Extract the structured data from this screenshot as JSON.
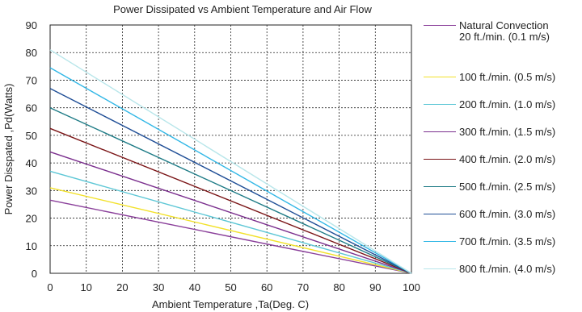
{
  "chart_data": {
    "type": "line",
    "title": "Power Dissipated vs Ambient Temperature and Air Flow",
    "xlabel": "Ambient Temperature ,Ta(Deg. C)",
    "ylabel": "Power Disspated ,Pd(Watts)",
    "xlim": [
      0,
      100
    ],
    "ylim": [
      0,
      90
    ],
    "xticks": [
      "0",
      "10",
      "20",
      "30",
      "40",
      "50",
      "60",
      "70",
      "80",
      "90",
      "100"
    ],
    "yticks": [
      "0",
      "10",
      "20",
      "30",
      "40",
      "50",
      "60",
      "70",
      "80",
      "90"
    ],
    "grid": true,
    "legend_position": "right",
    "series": [
      {
        "name": "Natural Convection",
        "subname": "20 ft./min. (0.1 m/s)",
        "color": "#8a3f9a",
        "x": [
          0,
          100
        ],
        "y": [
          26.5,
          0
        ]
      },
      {
        "name": "100 ft./min. (0.5 m/s)",
        "color": "#f2e12a",
        "x": [
          0,
          100
        ],
        "y": [
          31,
          0
        ]
      },
      {
        "name": "200 ft./min. (1.0 m/s)",
        "color": "#5ec7d6",
        "x": [
          0,
          100
        ],
        "y": [
          37,
          0
        ]
      },
      {
        "name": "300 ft./min. (1.5 m/s)",
        "color": "#7b2f8e",
        "x": [
          0,
          100
        ],
        "y": [
          44,
          0
        ]
      },
      {
        "name": "400 ft./min. (2.0 m/s)",
        "color": "#7a1416",
        "x": [
          0,
          100
        ],
        "y": [
          52.5,
          0
        ]
      },
      {
        "name": "500 ft./min. (2.5 m/s)",
        "color": "#1e7b86",
        "x": [
          0,
          100
        ],
        "y": [
          60,
          0
        ]
      },
      {
        "name": "600 ft./min. (3.0 m/s)",
        "color": "#1f4e96",
        "x": [
          0,
          100
        ],
        "y": [
          67,
          0
        ]
      },
      {
        "name": "700 ft./min. (3.5 m/s)",
        "color": "#31b7e6",
        "x": [
          0,
          100
        ],
        "y": [
          74.5,
          0
        ]
      },
      {
        "name": "800 ft./min. (4.0 m/s)",
        "color": "#b8e6ea",
        "x": [
          0,
          100
        ],
        "y": [
          81,
          0
        ]
      }
    ]
  }
}
